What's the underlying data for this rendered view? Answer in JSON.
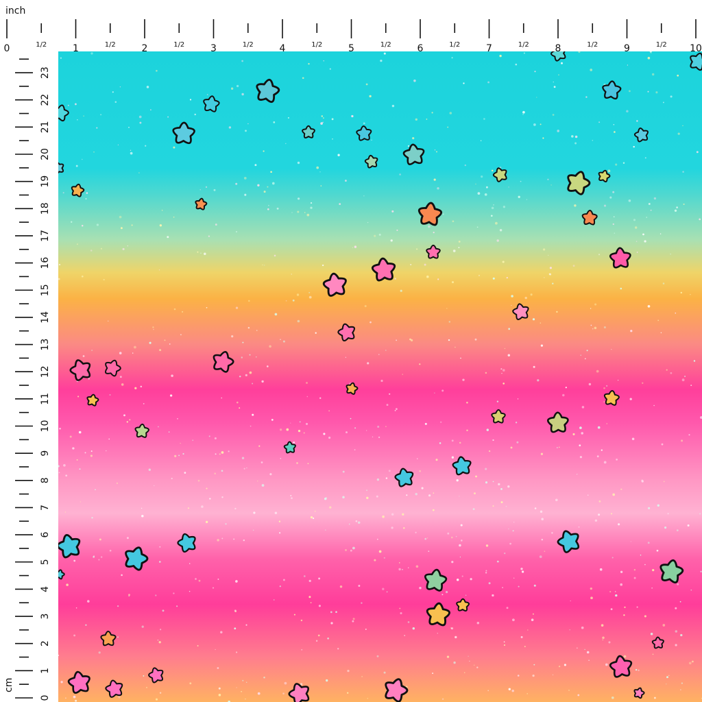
{
  "inch_ruler": {
    "unit": "inch",
    "labels": [
      "0",
      "1/2",
      "1",
      "1/2",
      "2",
      "1/2",
      "3",
      "1/2",
      "4",
      "1/2",
      "5",
      "1/2",
      "6",
      "1/2",
      "7",
      "1/2",
      "8",
      "1/2",
      "9",
      "1/2",
      "10"
    ]
  },
  "cm_ruler": {
    "unit": "cm",
    "labels": [
      "0",
      "1",
      "2",
      "3",
      "4",
      "5",
      "6",
      "7",
      "8",
      "9",
      "10",
      "11",
      "12",
      "13",
      "14",
      "15",
      "16",
      "17",
      "18",
      "19",
      "20",
      "21",
      "22",
      "23"
    ]
  }
}
